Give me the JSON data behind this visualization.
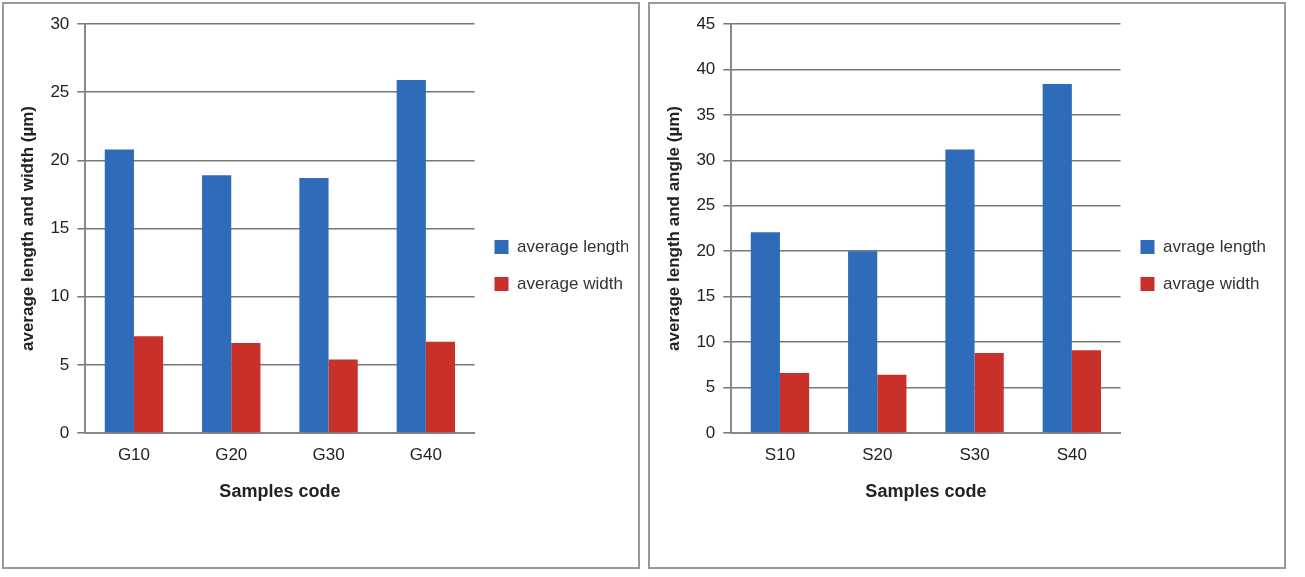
{
  "chart_data": [
    {
      "type": "bar",
      "xlabel": "Samples code",
      "ylabel": "average length and width (µm)",
      "categories": [
        "G10",
        "G20",
        "G30",
        "G40"
      ],
      "series": [
        {
          "name": "average length",
          "color": "#2e6bb8",
          "values": [
            20.8,
            18.9,
            18.7,
            25.9
          ]
        },
        {
          "name": "average width",
          "color": "#c8302a",
          "values": [
            7.1,
            6.6,
            5.4,
            6.7
          ]
        }
      ],
      "ylim": [
        0,
        30
      ],
      "yticks": [
        0,
        5,
        10,
        15,
        20,
        25,
        30
      ],
      "grid": "y",
      "legend": "right"
    },
    {
      "type": "bar",
      "xlabel": "Samples code",
      "ylabel": "average length and angle (µm)",
      "categories": [
        "S10",
        "S20",
        "S30",
        "S40"
      ],
      "series": [
        {
          "name": "avrage length",
          "color": "#2e6bb8",
          "values": [
            22.1,
            20.0,
            31.2,
            38.4
          ]
        },
        {
          "name": "avrage width",
          "color": "#c8302a",
          "values": [
            6.6,
            6.4,
            8.8,
            9.1
          ]
        }
      ],
      "ylim": [
        0,
        45
      ],
      "yticks": [
        0,
        5,
        10,
        15,
        20,
        25,
        30,
        35,
        40,
        45
      ],
      "grid": "y",
      "legend": "right"
    }
  ]
}
